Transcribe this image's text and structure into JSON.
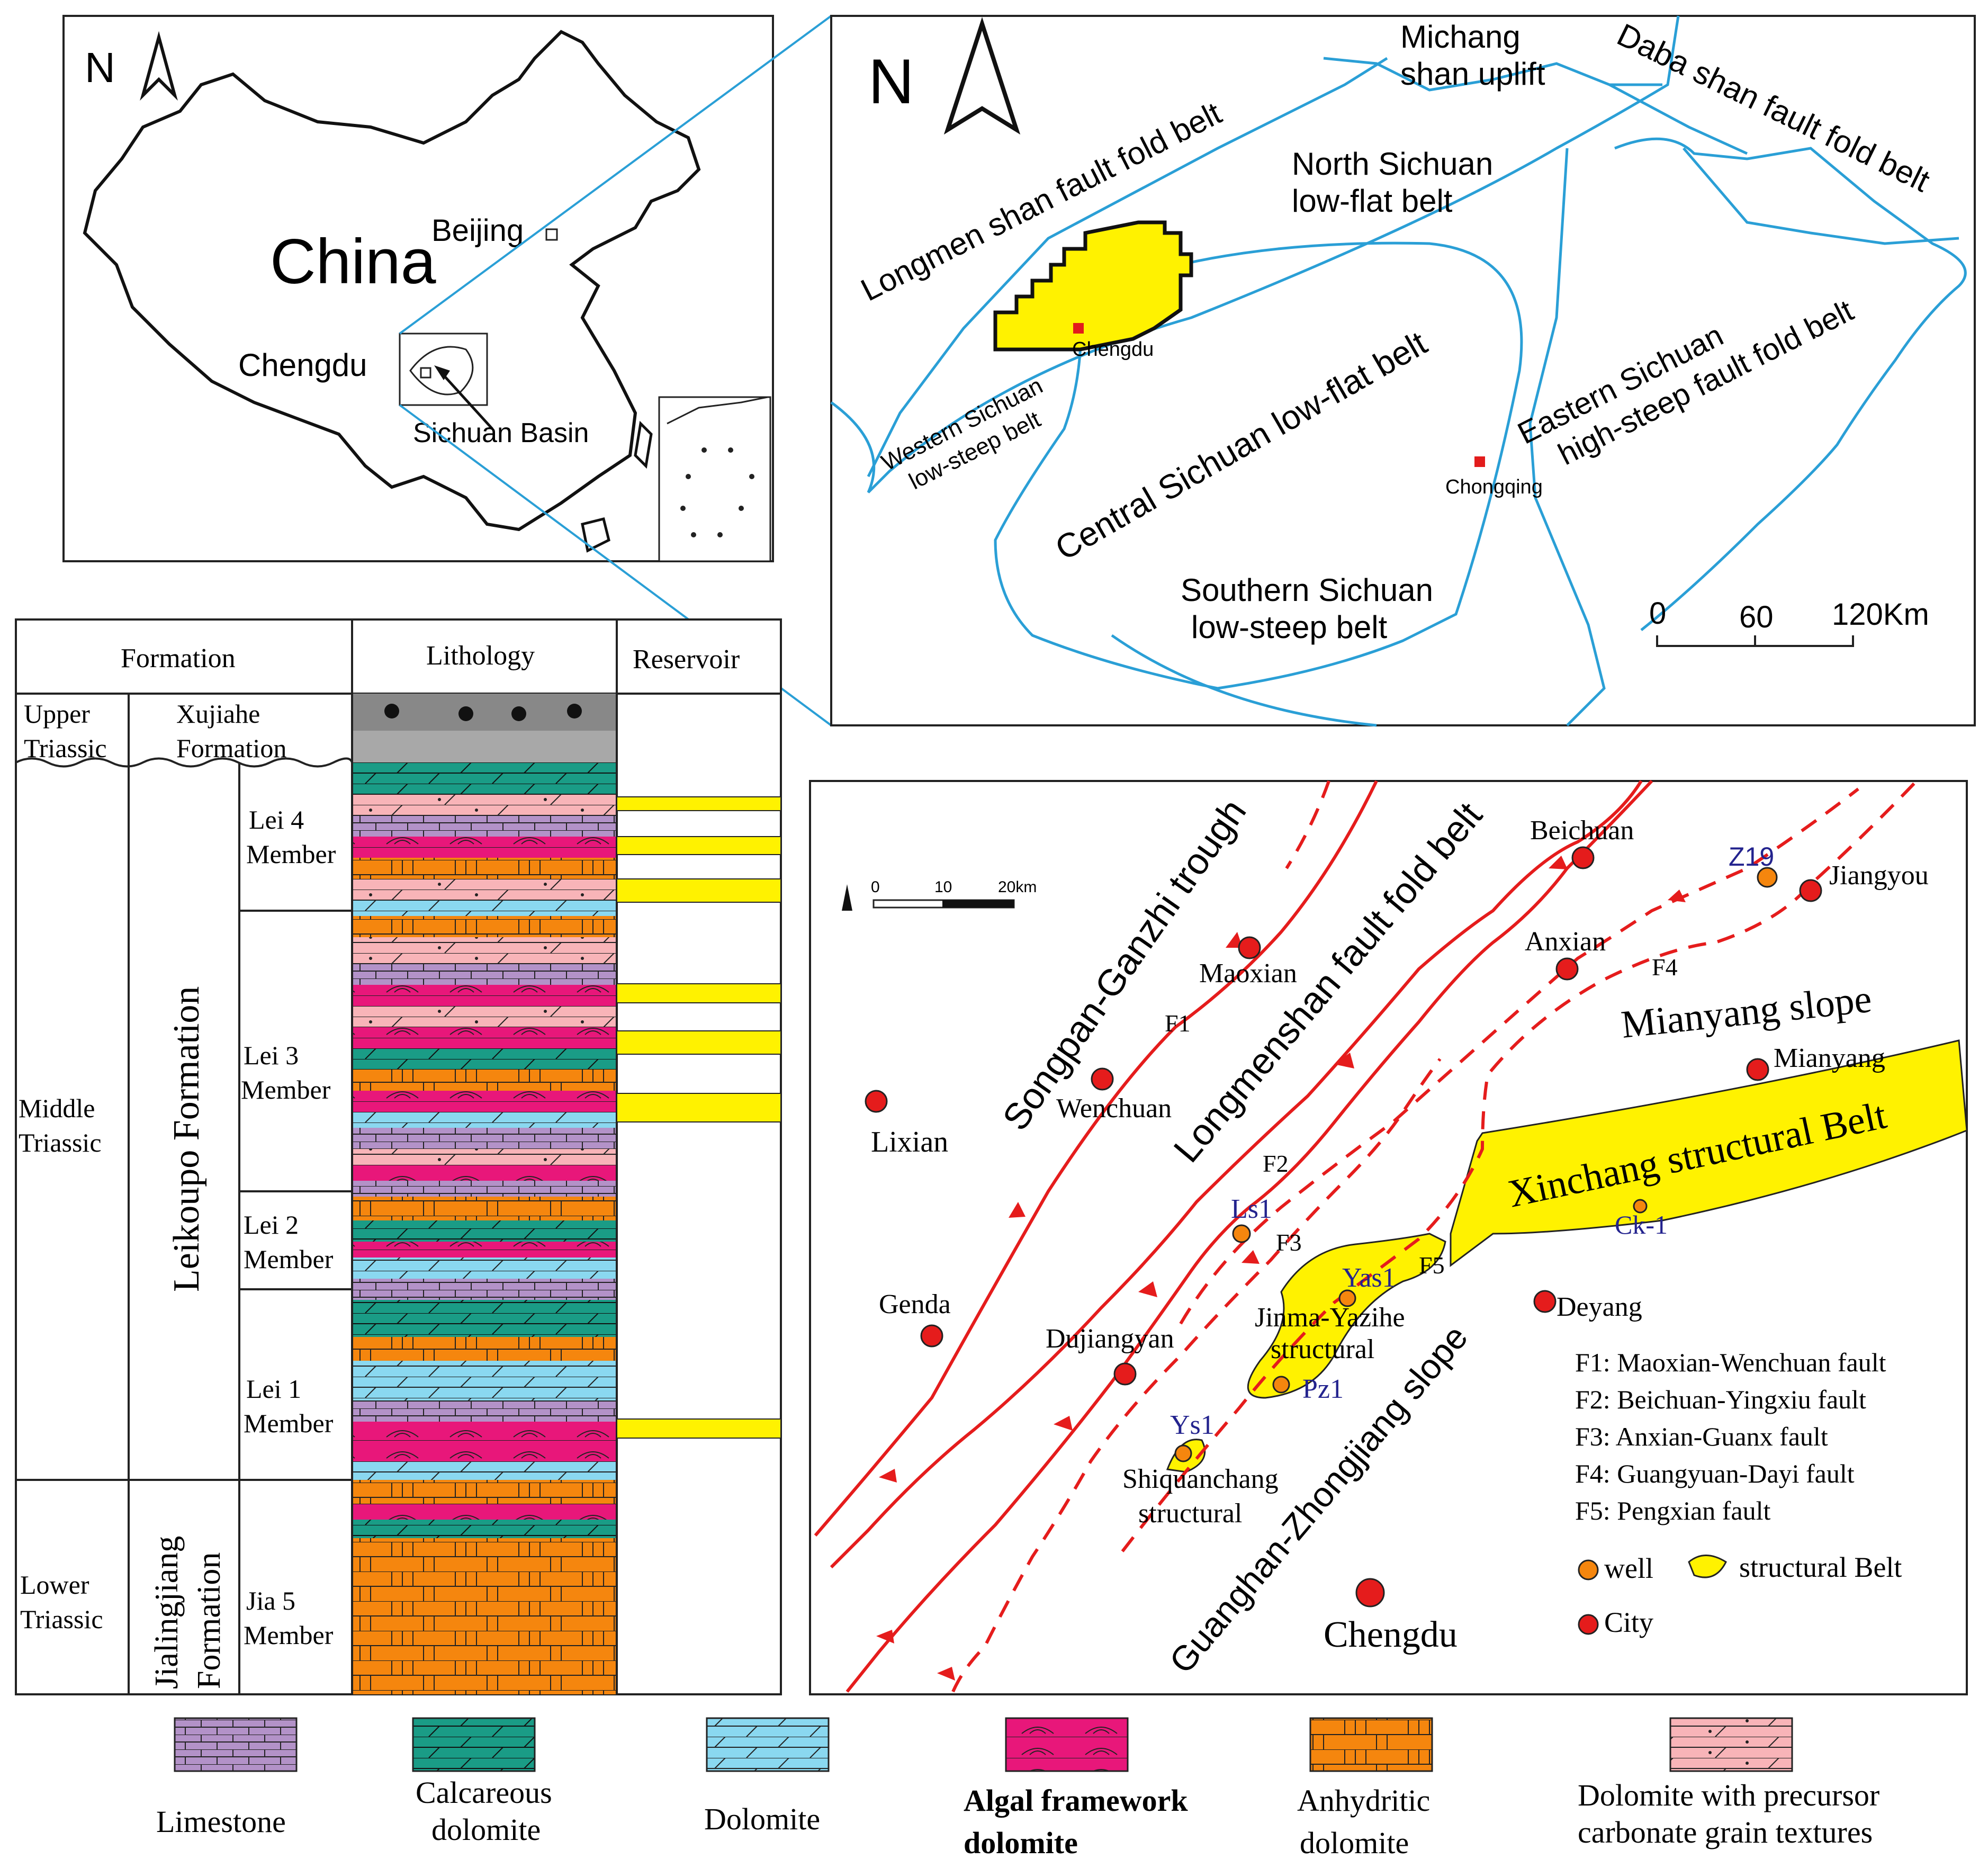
{
  "china_map": {
    "north": "N",
    "country": "China",
    "beijing": "Beijing",
    "chengdu": "Chengdu",
    "basin": "Sichuan Basin"
  },
  "sichuan_map": {
    "north": "N",
    "michang": [
      "Michang",
      "shan uplift"
    ],
    "daba": "Daba shan fault fold belt",
    "longmen": "Longmen shan fault fold belt",
    "north_sichuan": [
      "North Sichuan",
      "low-flat belt"
    ],
    "western": [
      "Western Sichuan",
      "low-steep belt"
    ],
    "chengdu": "Chengdu",
    "central": "Central Sichuan low-flat belt",
    "eastern": [
      "Eastern Sichuan",
      "high-steep fault fold belt"
    ],
    "chongqing": "Chongqing",
    "southern": [
      "Southern Sichuan",
      "low-steep belt"
    ],
    "scale": [
      "0",
      "60",
      "120Km"
    ]
  },
  "column": {
    "headers": {
      "formation": "Formation",
      "lithology": "Lithology",
      "reservoir": "Reservoir"
    },
    "upper_triassic": [
      "Upper",
      "Triassic"
    ],
    "xujiahe": [
      "Xujiahe",
      "Formation"
    ],
    "middle_triassic": [
      "Middle",
      "Triassic"
    ],
    "leikoupo": "Leikoupo Formation",
    "lower_triassic": [
      "Lower",
      "Triassic"
    ],
    "jialingjiang": [
      "Jialingjiang",
      "Formation"
    ],
    "members": [
      [
        "Lei 4",
        "Member"
      ],
      [
        "Lei 3",
        "Member"
      ],
      [
        "Lei 2",
        "Member"
      ],
      [
        "Lei 1",
        "Member"
      ],
      [
        "Jia 5",
        "Member"
      ]
    ]
  },
  "fault_map": {
    "scale": [
      "0",
      "10",
      "20km"
    ],
    "songpan": "Songpan-Ganzhi trough",
    "longmenshan": "Longmenshan fault fold belt",
    "mianyang_slope": "Mianyang  slope",
    "xinchang": "Xinchang structural Belt",
    "guanghan": "Guanghan-Zhongjiang slope",
    "jinma": [
      "Jinma-Yazihe",
      "structural"
    ],
    "shiquanchang": [
      "Shiquanchang",
      "structural"
    ],
    "cities": {
      "beichuan": "Beichuan",
      "jiangyou": "Jiangyou",
      "maoxian": "Maoxian",
      "anxian": "Anxian",
      "mianyang": "Mianyang",
      "wenchuan": "Wenchuan",
      "lixian": "Lixian",
      "genda": "Genda",
      "dujiangyan": "Dujiangyan",
      "deyang": "Deyang",
      "chengdu": "Chengdu"
    },
    "wells": {
      "z19": "Z19",
      "ls1": "Ls1",
      "yas1": "Yas1",
      "ck1": "Ck-1",
      "pz1": "Pz1",
      "ys1": "Ys1"
    },
    "fault_labels": [
      "F1",
      "F2",
      "F3",
      "F4",
      "F5"
    ],
    "fault_legend": [
      "F1: Maoxian-Wenchuan  fault",
      "F2: Beichuan-Yingxiu fault",
      "F3: Anxian-Guanx fault",
      "F4: Guangyuan-Dayi fault",
      "F5: Pengxian fault"
    ],
    "legend_well": "well",
    "legend_belt": "structural Belt",
    "legend_city": "City"
  },
  "lithology_legend": [
    {
      "label": [
        "Limestone"
      ],
      "color": "#b392c8"
    },
    {
      "label": [
        "Calcareous",
        "dolomite"
      ],
      "color": "#1a9c86"
    },
    {
      "label": [
        "Dolomite"
      ],
      "color": "#8ad8f0"
    },
    {
      "label": [
        "Algal framework",
        "dolomite"
      ],
      "color": "#e8177a"
    },
    {
      "label": [
        "Anhydritic",
        "dolomite"
      ],
      "color": "#f5860e"
    },
    {
      "label": [
        "Dolomite with precursor",
        "carbonate grain textures"
      ],
      "color": "#f8b4b8"
    }
  ]
}
